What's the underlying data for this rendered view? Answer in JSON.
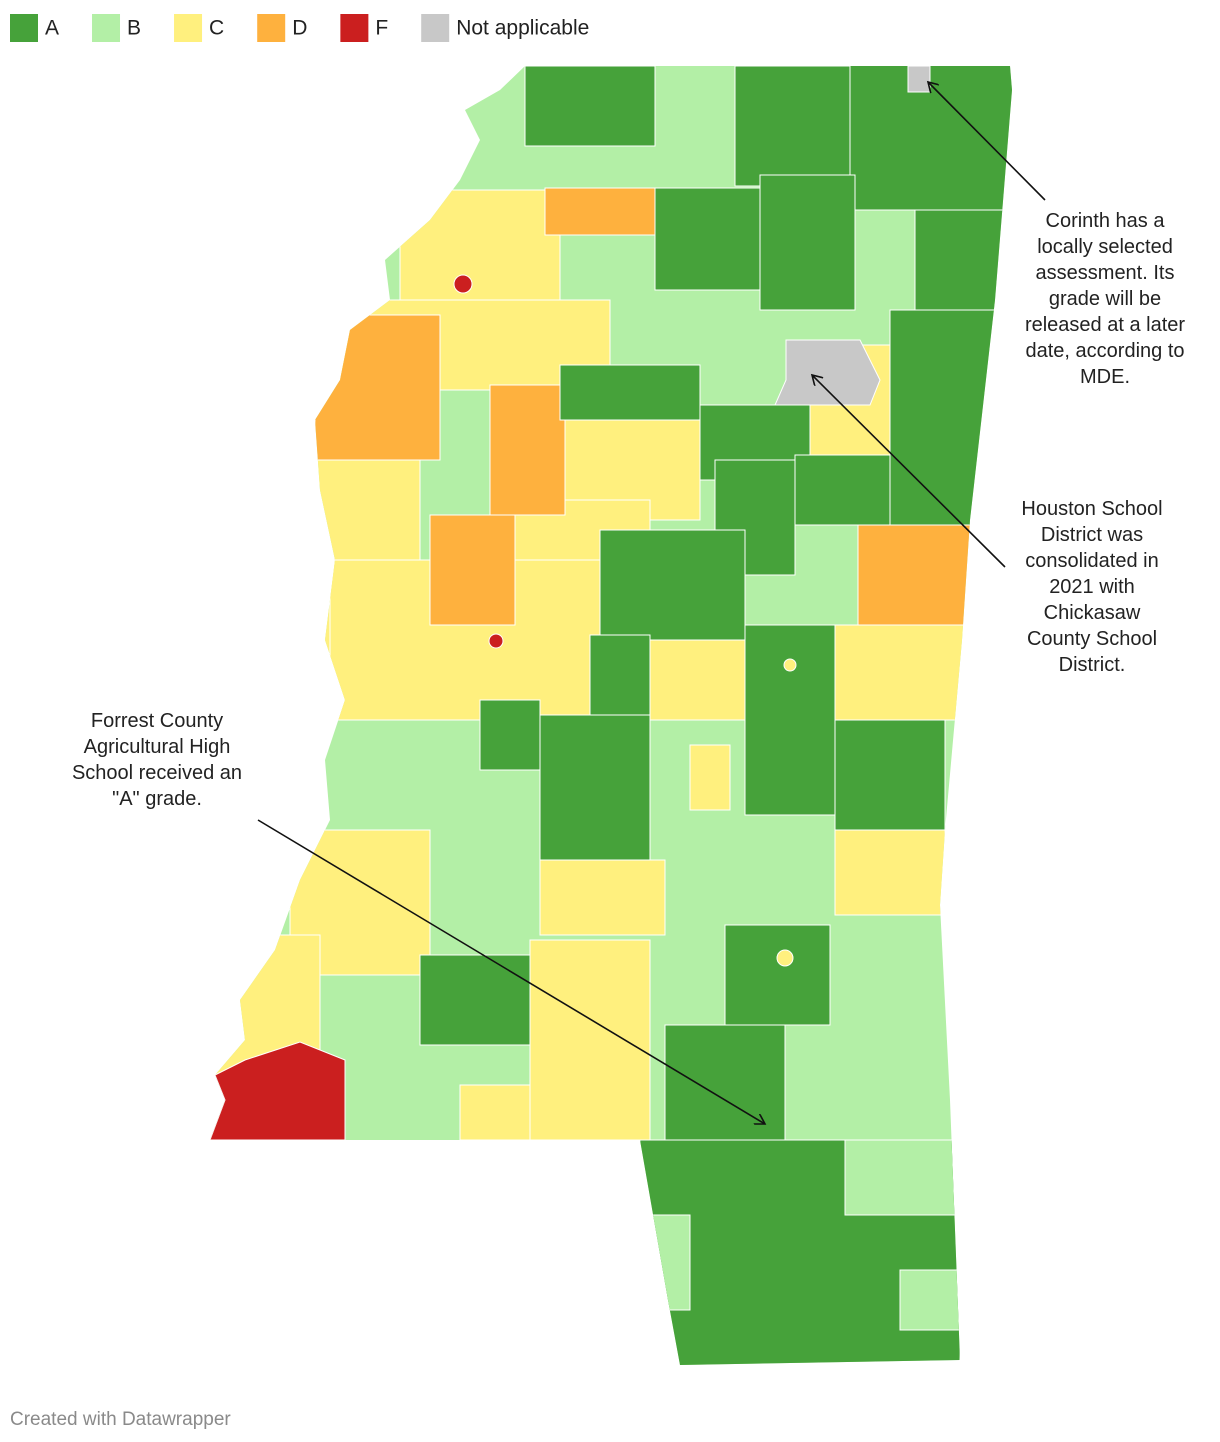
{
  "legend": [
    {
      "label": "A",
      "color": "#46a23a"
    },
    {
      "label": "B",
      "color": "#b3efa6"
    },
    {
      "label": "C",
      "color": "#fff07e"
    },
    {
      "label": "D",
      "color": "#feb13e"
    },
    {
      "label": "F",
      "color": "#cb1f1f"
    },
    {
      "label": "Not applicable",
      "color": "#c8c8c8"
    }
  ],
  "annotations": [
    {
      "lines": [
        "Corinth has a",
        "locally selected",
        "assessment. Its",
        "grade will be",
        "released at a later",
        "date, according to",
        "MDE."
      ]
    },
    {
      "lines": [
        "Houston School",
        "District was",
        "consolidated in",
        "2021 with",
        "Chickasaw",
        "County School",
        "District."
      ]
    },
    {
      "lines": [
        "Forrest County",
        "Agricultural High",
        "School received an",
        "\"A\" grade."
      ]
    }
  ],
  "footer": "Created with Datawrapper"
}
